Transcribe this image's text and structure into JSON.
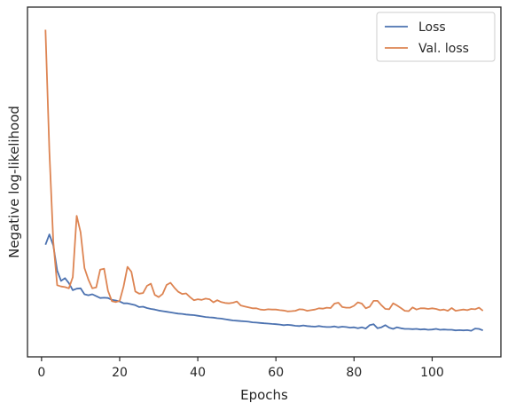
{
  "chart_data": {
    "type": "line",
    "title": "",
    "xlabel": "Epochs",
    "ylabel": "Negative log-likelihood",
    "xlim": [
      -3.6,
      117.6
    ],
    "ylim": [
      0,
      1
    ],
    "x_ticks": [
      0,
      20,
      40,
      60,
      80,
      100
    ],
    "y_ticks_shown": false,
    "grid": false,
    "legend_position": "top-right",
    "colors": {
      "loss": "#4c72b0",
      "val_loss": "#dd8452",
      "axes": "#262626"
    },
    "series": [
      {
        "name": "Loss",
        "key": "loss",
        "x": [
          1,
          2,
          3,
          4,
          5,
          6,
          7,
          8,
          9,
          10,
          11,
          12,
          13,
          14,
          15,
          16,
          17,
          18,
          19,
          20,
          21,
          22,
          23,
          24,
          25,
          26,
          27,
          28,
          29,
          30,
          31,
          32,
          33,
          34,
          35,
          36,
          37,
          38,
          39,
          40,
          41,
          42,
          43,
          44,
          45,
          46,
          47,
          48,
          49,
          50,
          51,
          52,
          53,
          54,
          55,
          56,
          57,
          58,
          59,
          60,
          61,
          62,
          63,
          64,
          65,
          66,
          67,
          68,
          69,
          70,
          71,
          72,
          73,
          74,
          75,
          76,
          77,
          78,
          79,
          80,
          81,
          82,
          83,
          84,
          85,
          86,
          87,
          88,
          89,
          90,
          91,
          92,
          93,
          94,
          95,
          96,
          97,
          98,
          99,
          100,
          101,
          102,
          103,
          104,
          105,
          106,
          107,
          108,
          109,
          110,
          111,
          112,
          113
        ],
        "values": [
          0.3,
          0.333,
          0.298,
          0.217,
          0.184,
          0.193,
          0.177,
          0.154,
          0.159,
          0.16,
          0.141,
          0.138,
          0.141,
          0.135,
          0.129,
          0.13,
          0.129,
          0.123,
          0.121,
          0.118,
          0.112,
          0.112,
          0.109,
          0.106,
          0.1,
          0.101,
          0.097,
          0.094,
          0.092,
          0.089,
          0.087,
          0.085,
          0.083,
          0.081,
          0.079,
          0.078,
          0.076,
          0.075,
          0.074,
          0.072,
          0.07,
          0.068,
          0.067,
          0.066,
          0.064,
          0.063,
          0.061,
          0.059,
          0.057,
          0.056,
          0.055,
          0.054,
          0.053,
          0.051,
          0.05,
          0.049,
          0.048,
          0.047,
          0.046,
          0.045,
          0.044,
          0.042,
          0.043,
          0.042,
          0.04,
          0.039,
          0.041,
          0.039,
          0.038,
          0.037,
          0.039,
          0.037,
          0.036,
          0.036,
          0.038,
          0.035,
          0.037,
          0.036,
          0.034,
          0.035,
          0.032,
          0.035,
          0.031,
          0.042,
          0.045,
          0.032,
          0.035,
          0.042,
          0.034,
          0.03,
          0.035,
          0.032,
          0.03,
          0.03,
          0.029,
          0.03,
          0.028,
          0.029,
          0.027,
          0.028,
          0.03,
          0.027,
          0.028,
          0.027,
          0.027,
          0.025,
          0.026,
          0.025,
          0.026,
          0.024,
          0.031,
          0.03,
          0.025
        ]
      },
      {
        "name": "Val. loss",
        "key": "val_loss",
        "x": [
          1,
          2,
          3,
          4,
          5,
          6,
          7,
          8,
          9,
          10,
          11,
          12,
          13,
          14,
          15,
          16,
          17,
          18,
          19,
          20,
          21,
          22,
          23,
          24,
          25,
          26,
          27,
          28,
          29,
          30,
          31,
          32,
          33,
          34,
          35,
          36,
          37,
          38,
          39,
          40,
          41,
          42,
          43,
          44,
          45,
          46,
          47,
          48,
          49,
          50,
          51,
          52,
          53,
          54,
          55,
          56,
          57,
          58,
          59,
          60,
          61,
          62,
          63,
          64,
          65,
          66,
          67,
          68,
          69,
          70,
          71,
          72,
          73,
          74,
          75,
          76,
          77,
          78,
          79,
          80,
          81,
          82,
          83,
          84,
          85,
          86,
          87,
          88,
          89,
          90,
          91,
          92,
          93,
          94,
          95,
          96,
          97,
          98,
          99,
          100,
          101,
          102,
          103,
          104,
          105,
          106,
          107,
          108,
          109,
          110,
          111,
          112,
          113
        ],
        "values": [
          0.99,
          0.6,
          0.31,
          0.17,
          0.166,
          0.164,
          0.16,
          0.196,
          0.393,
          0.34,
          0.225,
          0.188,
          0.16,
          0.163,
          0.22,
          0.223,
          0.152,
          0.119,
          0.116,
          0.12,
          0.166,
          0.229,
          0.213,
          0.15,
          0.143,
          0.145,
          0.168,
          0.175,
          0.139,
          0.132,
          0.142,
          0.171,
          0.178,
          0.162,
          0.149,
          0.142,
          0.144,
          0.132,
          0.122,
          0.125,
          0.123,
          0.127,
          0.125,
          0.115,
          0.122,
          0.116,
          0.113,
          0.112,
          0.114,
          0.118,
          0.105,
          0.102,
          0.099,
          0.096,
          0.096,
          0.092,
          0.091,
          0.093,
          0.092,
          0.092,
          0.09,
          0.089,
          0.086,
          0.087,
          0.088,
          0.093,
          0.092,
          0.088,
          0.09,
          0.092,
          0.096,
          0.095,
          0.098,
          0.097,
          0.111,
          0.114,
          0.1,
          0.098,
          0.098,
          0.104,
          0.115,
          0.111,
          0.096,
          0.101,
          0.12,
          0.12,
          0.106,
          0.094,
          0.093,
          0.112,
          0.105,
          0.097,
          0.088,
          0.087,
          0.099,
          0.092,
          0.096,
          0.096,
          0.094,
          0.096,
          0.094,
          0.09,
          0.092,
          0.088,
          0.097,
          0.088,
          0.09,
          0.092,
          0.09,
          0.094,
          0.093,
          0.098,
          0.088
        ]
      }
    ]
  }
}
